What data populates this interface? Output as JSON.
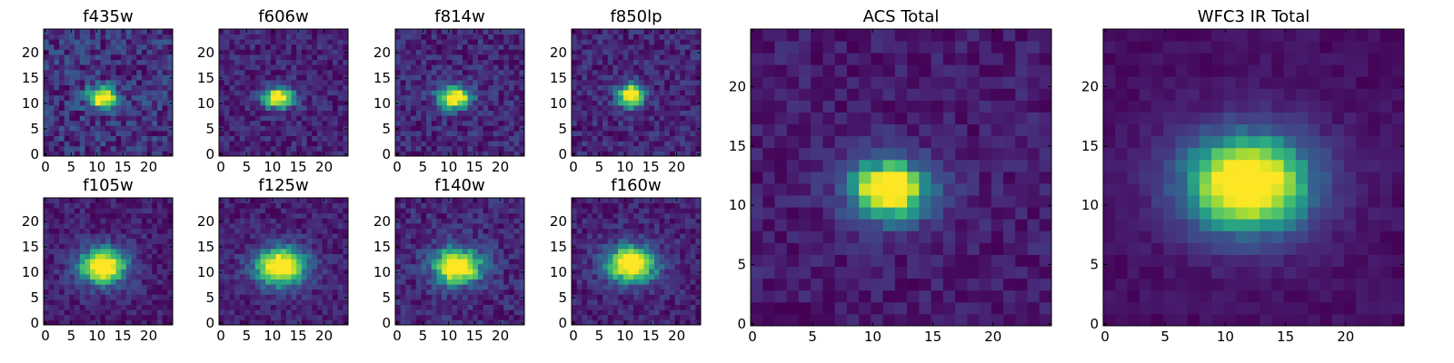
{
  "chart_data": [
    {
      "type": "heatmap",
      "title": "f435w",
      "grid_size": 25,
      "center": [
        11.5,
        11.5
      ],
      "sigma": [
        1.6,
        1.1
      ],
      "peak": 1.0,
      "background": 0.42,
      "noise": 0.22,
      "seed": 11,
      "xticks": [
        0,
        5,
        10,
        15,
        20
      ],
      "yticks": [
        0,
        5,
        10,
        15,
        20
      ],
      "xlim": [
        0,
        25
      ],
      "ylim": [
        0,
        25
      ],
      "colormap": "viridis"
    },
    {
      "type": "heatmap",
      "title": "f606w",
      "grid_size": 25,
      "center": [
        11.5,
        11.5
      ],
      "sigma": [
        1.7,
        1.1
      ],
      "peak": 1.0,
      "background": 0.2,
      "noise": 0.14,
      "seed": 23,
      "xticks": [
        0,
        5,
        10,
        15,
        20
      ],
      "yticks": [
        0,
        5,
        10,
        15,
        20
      ],
      "xlim": [
        0,
        25
      ],
      "ylim": [
        0,
        25
      ],
      "colormap": "viridis"
    },
    {
      "type": "heatmap",
      "title": "f814w",
      "grid_size": 25,
      "center": [
        11.5,
        11.5
      ],
      "sigma": [
        1.8,
        1.2
      ],
      "peak": 1.0,
      "background": 0.22,
      "noise": 0.16,
      "seed": 37,
      "xticks": [
        0,
        5,
        10,
        15,
        20
      ],
      "yticks": [
        0,
        5,
        10,
        15,
        20
      ],
      "xlim": [
        0,
        25
      ],
      "ylim": [
        0,
        25
      ],
      "colormap": "viridis"
    },
    {
      "type": "heatmap",
      "title": "f850lp",
      "grid_size": 25,
      "center": [
        11.5,
        12
      ],
      "sigma": [
        1.4,
        1.3
      ],
      "peak": 1.0,
      "background": 0.3,
      "noise": 0.15,
      "seed": 41,
      "xticks": [
        0,
        5,
        10,
        15,
        20
      ],
      "yticks": [
        0,
        5,
        10,
        15,
        20
      ],
      "xlim": [
        0,
        25
      ],
      "ylim": [
        0,
        25
      ],
      "colormap": "viridis"
    },
    {
      "type": "heatmap",
      "title": "f105w",
      "grid_size": 25,
      "center": [
        11.5,
        11.5
      ],
      "sigma": [
        2.6,
        2.0
      ],
      "peak": 1.0,
      "background": 0.25,
      "noise": 0.12,
      "seed": 53,
      "xticks": [
        0,
        5,
        10,
        15,
        20
      ],
      "yticks": [
        0,
        5,
        10,
        15,
        20
      ],
      "xlim": [
        0,
        25
      ],
      "ylim": [
        0,
        25
      ],
      "colormap": "viridis"
    },
    {
      "type": "heatmap",
      "title": "f125w",
      "grid_size": 25,
      "center": [
        12,
        11.5
      ],
      "sigma": [
        2.8,
        2.1
      ],
      "peak": 1.0,
      "background": 0.3,
      "noise": 0.12,
      "seed": 61,
      "xticks": [
        0,
        5,
        10,
        15,
        20
      ],
      "yticks": [
        0,
        5,
        10,
        15,
        20
      ],
      "xlim": [
        0,
        25
      ],
      "ylim": [
        0,
        25
      ],
      "colormap": "viridis"
    },
    {
      "type": "heatmap",
      "title": "f140w",
      "grid_size": 25,
      "center": [
        12,
        11.5
      ],
      "sigma": [
        2.7,
        2.0
      ],
      "peak": 1.0,
      "background": 0.25,
      "noise": 0.15,
      "seed": 73,
      "xticks": [
        0,
        5,
        10,
        15,
        20
      ],
      "yticks": [
        0,
        5,
        10,
        15,
        20
      ],
      "xlim": [
        0,
        25
      ],
      "ylim": [
        0,
        25
      ],
      "colormap": "viridis"
    },
    {
      "type": "heatmap",
      "title": "f160w",
      "grid_size": 25,
      "center": [
        11.5,
        12
      ],
      "sigma": [
        2.8,
        2.0
      ],
      "peak": 1.0,
      "background": 0.22,
      "noise": 0.13,
      "seed": 89,
      "xticks": [
        0,
        5,
        10,
        15,
        20
      ],
      "yticks": [
        0,
        5,
        10,
        15,
        20
      ],
      "xlim": [
        0,
        25
      ],
      "ylim": [
        0,
        25
      ],
      "colormap": "viridis"
    },
    {
      "type": "heatmap",
      "title": "ACS Total",
      "grid_size": 25,
      "center": [
        11.5,
        11.5
      ],
      "sigma": [
        1.9,
        1.4
      ],
      "peak": 1.0,
      "background": 0.18,
      "noise": 0.1,
      "seed": 97,
      "xticks": [
        0,
        5,
        10,
        15,
        20
      ],
      "yticks": [
        0,
        5,
        10,
        15,
        20
      ],
      "xlim": [
        0,
        25
      ],
      "ylim": [
        0,
        25
      ],
      "colormap": "viridis"
    },
    {
      "type": "heatmap",
      "title": "WFC3 IR Total",
      "grid_size": 25,
      "center": [
        12,
        12
      ],
      "sigma": [
        3.1,
        2.4
      ],
      "peak": 1.0,
      "background": 0.16,
      "noise": 0.05,
      "seed": 103,
      "xticks": [
        0,
        5,
        10,
        15,
        20
      ],
      "yticks": [
        0,
        5,
        10,
        15,
        20
      ],
      "xlim": [
        0,
        25
      ],
      "ylim": [
        0,
        25
      ],
      "colormap": "viridis"
    }
  ]
}
